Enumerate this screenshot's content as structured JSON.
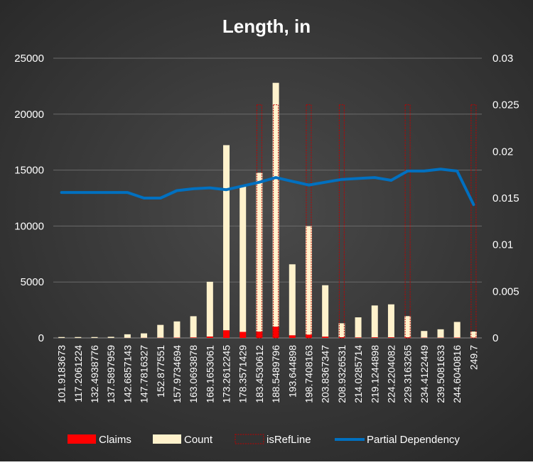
{
  "colors": {
    "background_outer": "#262626",
    "background_inner": "#4a4a4a",
    "claims": "#ff0000",
    "count": "#fff2cc",
    "refline": "#c00000",
    "partial_dependency": "#0070c0",
    "text": "#ffffff",
    "gridline": "#6a6a6a"
  },
  "chart_data": {
    "type": "bar",
    "title": "Length, in",
    "xlabel": "",
    "ylabel": "",
    "ylim": [
      0,
      25000
    ],
    "y2lim": [
      0,
      0.03
    ],
    "yticks": [
      "0",
      "5000",
      "10000",
      "15000",
      "20000",
      "25000"
    ],
    "y2ticks": [
      "0",
      "0.005",
      "0.01",
      "0.015",
      "0.02",
      "0.025",
      "0.03"
    ],
    "grid": true,
    "legend_position": "bottom",
    "categories": [
      "101.9183673",
      "117.2061224",
      "132.4938776",
      "137.5897959",
      "142.6857143",
      "147.7816327",
      "152.877551",
      "157.9734694",
      "163.0693878",
      "168.1653061",
      "173.2612245",
      "178.3571429",
      "183.4530612",
      "188.5489796",
      "193.644898",
      "198.7408163",
      "203.8367347",
      "208.9326531",
      "214.0285714",
      "219.1244898",
      "224.2204082",
      "229.3163265",
      "234.4122449",
      "239.5081633",
      "244.6040816",
      "249.7"
    ],
    "series": [
      {
        "name": "Claims",
        "kind": "bar",
        "axis": "left",
        "values": [
          0,
          0,
          0,
          0,
          5,
          8,
          15,
          25,
          40,
          120,
          680,
          540,
          560,
          1000,
          230,
          290,
          110,
          60,
          40,
          50,
          50,
          50,
          20,
          20,
          30,
          20
        ]
      },
      {
        "name": "Count",
        "kind": "bar",
        "axis": "left",
        "values": [
          80,
          80,
          80,
          100,
          320,
          400,
          1150,
          1450,
          1900,
          4900,
          16550,
          13100,
          14200,
          21800,
          6350,
          9700,
          4600,
          1250,
          1800,
          2850,
          2950,
          1900,
          600,
          750,
          1400,
          550
        ]
      },
      {
        "name": "isRefLine",
        "kind": "bar",
        "axis": "right",
        "values": [
          0,
          0,
          0,
          0,
          0,
          0,
          0,
          0,
          0,
          0,
          0,
          0,
          0.025,
          0.025,
          0,
          0.025,
          0,
          0.025,
          0,
          0,
          0,
          0.025,
          0,
          0,
          0,
          0.025
        ]
      },
      {
        "name": "Partial Dependency",
        "kind": "line",
        "axis": "right",
        "values": [
          0.0156,
          0.0156,
          0.0156,
          0.0156,
          0.0156,
          0.015,
          0.015,
          0.0158,
          0.016,
          0.0161,
          0.0159,
          0.0163,
          0.0167,
          0.0172,
          0.0168,
          0.0164,
          0.0167,
          0.017,
          0.0171,
          0.0172,
          0.0169,
          0.0179,
          0.0179,
          0.0181,
          0.0179,
          0.0143
        ]
      }
    ]
  }
}
